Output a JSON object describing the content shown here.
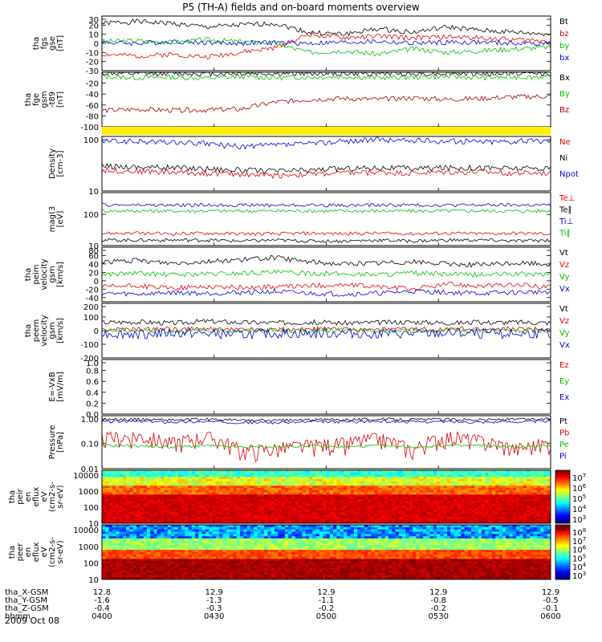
{
  "title": "P5 (TH-A) fields and on-board moments overview",
  "date_label": "2009 Oct 08",
  "colors": {
    "black": "#000000",
    "red": "#e00000",
    "green": "#00c000",
    "blue": "#0000d0",
    "yellow": "#ffee00",
    "darkred": "#a00000"
  },
  "footer": {
    "rows": [
      {
        "label": "tha_X-GSM",
        "values": [
          "12.8",
          "12.9",
          "12.9",
          "12.9",
          "12.9"
        ]
      },
      {
        "label": "tha_Y-GSM",
        "values": [
          "-1.6",
          "-1.3",
          "-1.1",
          "-0.8",
          "-0.5"
        ]
      },
      {
        "label": "tha_Z-GSM",
        "values": [
          "-0.4",
          "-0.3",
          "-0.2",
          "-0.2",
          "-0.1"
        ]
      },
      {
        "label": "hhmm",
        "values": [
          "0400",
          "0430",
          "0500",
          "0530",
          "0600"
        ]
      }
    ]
  },
  "chart_data": [
    {
      "type": "line",
      "ylabel": [
        "tha",
        "fgs",
        "gse",
        "[nT]"
      ],
      "ylim": [
        -30,
        30
      ],
      "yticks": [
        "30",
        "20",
        "10",
        "0",
        "-10",
        "-20",
        "-30"
      ],
      "series": [
        {
          "name": "Bt",
          "color": "black",
          "values": [
            22,
            24,
            22,
            18,
            20,
            22,
            12,
            10,
            16,
            12,
            18,
            14,
            12,
            10
          ]
        },
        {
          "name": "bz",
          "color": "red",
          "values": [
            -12,
            -14,
            -12,
            -15,
            -10,
            -5,
            10,
            6,
            8,
            6,
            7,
            6,
            4,
            3
          ]
        },
        {
          "name": "by",
          "color": "green",
          "values": [
            2,
            3,
            1,
            4,
            2,
            0,
            -10,
            -8,
            -12,
            -6,
            -10,
            -8,
            -6,
            -4
          ]
        },
        {
          "name": "bx",
          "color": "blue",
          "values": [
            1,
            0,
            2,
            1,
            0,
            1,
            0,
            1,
            2,
            0,
            1,
            1,
            0,
            0
          ]
        }
      ]
    },
    {
      "type": "line",
      "ylabel": [
        "tha",
        "fge",
        "gsm",
        "-t89",
        "[nT]"
      ],
      "ylim": [
        -100,
        0
      ],
      "yticks": [
        "-20",
        "-40",
        "-60",
        "-80",
        "-100"
      ],
      "series": [
        {
          "name": "Bx",
          "color": "black",
          "values": [
            -2,
            -3,
            -2,
            -3,
            -2,
            -3,
            -2,
            -3,
            -2,
            -3,
            -2,
            -3,
            -2,
            -3
          ]
        },
        {
          "name": "By",
          "color": "green",
          "values": [
            -8,
            -10,
            -9,
            -11,
            -8,
            -10,
            -9,
            -8,
            -10,
            -9,
            -8,
            -10,
            -9,
            -8
          ]
        },
        {
          "name": "Bz",
          "color": "darkred",
          "values": [
            -70,
            -68,
            -70,
            -69,
            -68,
            -55,
            -50,
            -48,
            -50,
            -47,
            -50,
            -48,
            -45,
            -44
          ]
        }
      ]
    },
    {
      "type": "heatmap",
      "label": "",
      "color": "yellow"
    },
    {
      "type": "line",
      "ylabel": [
        "Density",
        "[cm-3]"
      ],
      "scale": "log",
      "ylim": [
        10,
        110
      ],
      "yticks": [
        "100",
        "10"
      ],
      "series": [
        {
          "name": "Ne",
          "color": "red",
          "values": [
            25,
            24,
            23,
            22,
            21,
            20,
            21,
            22,
            23,
            22,
            23,
            23,
            22,
            22
          ]
        },
        {
          "name": "Ni",
          "color": "black",
          "values": [
            30,
            29,
            28,
            27,
            25,
            24,
            25,
            27,
            28,
            27,
            28,
            28,
            27,
            27
          ]
        },
        {
          "name": "Npot",
          "color": "blue",
          "values": [
            90,
            88,
            85,
            80,
            70,
            75,
            80,
            90,
            95,
            92,
            90,
            88,
            90,
            92
          ]
        }
      ]
    },
    {
      "type": "line",
      "ylabel": [
        "mag(3",
        "[eV]"
      ],
      "scale": "log",
      "ylim": [
        10,
        500
      ],
      "yticks": [
        "100",
        "10"
      ],
      "series": [
        {
          "name": "Te⊥",
          "color": "red",
          "values": [
            25,
            25,
            24,
            25,
            24,
            24,
            25,
            24,
            25,
            24,
            25,
            24,
            25,
            24
          ]
        },
        {
          "name": "Te∥",
          "color": "black",
          "values": [
            15,
            15,
            15,
            15,
            14,
            15,
            14,
            14,
            15,
            14,
            15,
            15,
            14,
            15
          ]
        },
        {
          "name": "Ti⊥",
          "color": "blue",
          "values": [
            200,
            200,
            195,
            200,
            200,
            198,
            200,
            195,
            200,
            200,
            198,
            200,
            200,
            198
          ]
        },
        {
          "name": "Ti∥",
          "color": "green",
          "values": [
            130,
            130,
            128,
            130,
            128,
            130,
            130,
            128,
            130,
            128,
            130,
            130,
            128,
            130
          ]
        }
      ]
    },
    {
      "type": "line",
      "ylabel": [
        "tha",
        "peim",
        "velocity",
        "gsm",
        "[km/s]"
      ],
      "ylim": [
        -50,
        80
      ],
      "yticks": [
        "80",
        "60",
        "40",
        "20",
        "0",
        "-20",
        "-40"
      ],
      "series": [
        {
          "name": "Vt",
          "color": "black",
          "values": [
            45,
            48,
            42,
            46,
            50,
            55,
            45,
            40,
            42,
            45,
            40,
            38,
            42,
            40
          ]
        },
        {
          "name": "Vz",
          "color": "red",
          "values": [
            -15,
            -12,
            -18,
            -14,
            -16,
            -15,
            -12,
            -10,
            -14,
            -20,
            -8,
            -12,
            -10,
            -14
          ]
        },
        {
          "name": "Vy",
          "color": "green",
          "values": [
            15,
            18,
            14,
            16,
            18,
            20,
            18,
            16,
            15,
            18,
            15,
            14,
            16,
            15
          ]
        },
        {
          "name": "Vx",
          "color": "blue",
          "values": [
            -30,
            -32,
            -28,
            -30,
            -28,
            -26,
            -30,
            -32,
            -30,
            -25,
            -28,
            -30,
            -28,
            -26
          ]
        }
      ]
    },
    {
      "type": "line",
      "ylabel": [
        "tha",
        "peem",
        "velocity",
        "gsm",
        "[km/s]"
      ],
      "ylim": [
        -200,
        200
      ],
      "yticks": [
        "200",
        "100",
        "0",
        "-100",
        "-200"
      ],
      "series": [
        {
          "name": "Vt",
          "color": "black",
          "values": [
            60,
            65,
            55,
            70,
            60,
            58,
            62,
            56,
            60,
            64,
            58,
            60,
            62,
            58
          ]
        },
        {
          "name": "Vz",
          "color": "red",
          "values": [
            10,
            8,
            12,
            10,
            9,
            10,
            11,
            10,
            9,
            10,
            8,
            10,
            12,
            10
          ]
        },
        {
          "name": "Vy",
          "color": "green",
          "values": [
            0,
            2,
            -2,
            0,
            1,
            -1,
            0,
            2,
            -2,
            0,
            1,
            0,
            -1,
            0
          ]
        },
        {
          "name": "Vx",
          "color": "blue",
          "values": [
            -20,
            -25,
            -18,
            -22,
            -30,
            -20,
            -24,
            -20,
            -22,
            -25,
            -20,
            -22,
            -24,
            -20
          ]
        }
      ]
    },
    {
      "type": "line",
      "ylabel": [
        "E=-VxB",
        "[mV/m]"
      ],
      "ylim": [
        0,
        1
      ],
      "yticks": [
        "1.0",
        "0.8",
        "0.6",
        "0.4",
        "0.2",
        "0.0"
      ],
      "series": [
        {
          "name": "Ez",
          "color": "red",
          "values": []
        },
        {
          "name": "Ey",
          "color": "green",
          "values": []
        },
        {
          "name": "Ex",
          "color": "blue",
          "values": []
        }
      ]
    },
    {
      "type": "line",
      "ylabel": [
        "Pressure",
        "[nPa]"
      ],
      "scale": "log",
      "ylim": [
        0.01,
        1.2
      ],
      "yticks": [
        "1.00",
        "0.10",
        "0.01"
      ],
      "series": [
        {
          "name": "Pt",
          "color": "black",
          "values": [
            0.85,
            0.88,
            0.82,
            0.86,
            0.8,
            0.78,
            0.82,
            0.86,
            0.88,
            0.85,
            0.86,
            0.84,
            0.86,
            0.88
          ]
        },
        {
          "name": "Pb",
          "color": "red",
          "values": [
            0.15,
            0.2,
            0.1,
            0.18,
            0.05,
            0.06,
            0.08,
            0.1,
            0.15,
            0.05,
            0.18,
            0.12,
            0.06,
            0.1
          ]
        },
        {
          "name": "Pe",
          "color": "green",
          "values": [
            0.08,
            0.08,
            0.07,
            0.08,
            0.07,
            0.07,
            0.08,
            0.07,
            0.08,
            0.07,
            0.08,
            0.08,
            0.07,
            0.08
          ]
        },
        {
          "name": "Pi",
          "color": "blue",
          "values": [
            0.7,
            0.72,
            0.68,
            0.7,
            0.66,
            0.64,
            0.68,
            0.7,
            0.72,
            0.7,
            0.7,
            0.68,
            0.7,
            0.72
          ]
        }
      ]
    },
    {
      "type": "heatmap",
      "ylabel": [
        "tha",
        "peir",
        "en",
        "eflux",
        "eV",
        "(cm2-s-",
        "sr-eV)"
      ],
      "scale": "log",
      "ylim": [
        10,
        20000
      ],
      "yticks": [
        "10000",
        "1000",
        "100",
        "10"
      ],
      "colorbar": [
        "10^7",
        "10^6",
        "10^5",
        "10^4",
        "10^3"
      ]
    },
    {
      "type": "heatmap",
      "ylabel": [
        "tha",
        "peer",
        "en",
        "eflux",
        "eV",
        "(cm2-s-",
        "sr-eV)"
      ],
      "scale": "log",
      "ylim": [
        10,
        20000
      ],
      "yticks": [
        "10000",
        "1000",
        "100",
        "10"
      ],
      "colorbar": [
        "10^8",
        "10^7",
        "10^6",
        "10^5",
        "10^4",
        "10^3"
      ]
    }
  ]
}
